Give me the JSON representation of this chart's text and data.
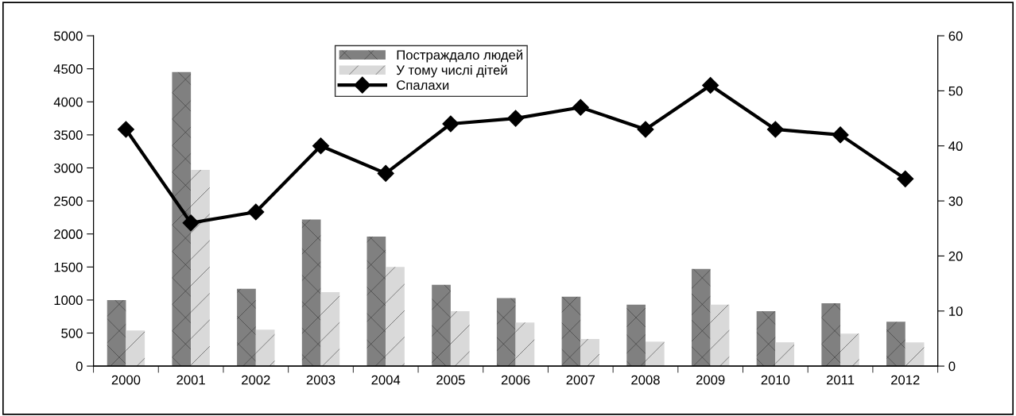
{
  "chart_data": {
    "type": "bar",
    "categories": [
      "2000",
      "2001",
      "2002",
      "2003",
      "2004",
      "2005",
      "2006",
      "2007",
      "2008",
      "2009",
      "2010",
      "2011",
      "2012"
    ],
    "series": [
      {
        "name": "Постраждало людей",
        "color": "#808080",
        "values": [
          1000,
          4450,
          1170,
          2220,
          1960,
          1230,
          1030,
          1050,
          930,
          1470,
          830,
          950,
          670
        ]
      },
      {
        "name": "У тому числі дітей",
        "color": "#d9d9d9",
        "values": [
          540,
          2970,
          550,
          1120,
          1500,
          830,
          660,
          410,
          370,
          930,
          360,
          490,
          360
        ]
      },
      {
        "name": "Спалахи",
        "type": "line",
        "axis": "y2",
        "color": "#000000",
        "marker": "diamond",
        "values": [
          43,
          26,
          28,
          40,
          35,
          44,
          45,
          47,
          43,
          51,
          43,
          42,
          34
        ]
      }
    ],
    "ylim": [
      0,
      5000
    ],
    "yticks": [
      0,
      500,
      1000,
      1500,
      2000,
      2500,
      3000,
      3500,
      4000,
      4500,
      5000
    ],
    "y2lim": [
      0,
      60
    ],
    "y2ticks": [
      0,
      10,
      20,
      30,
      40,
      50,
      60
    ],
    "grid": false,
    "legend": "top"
  }
}
